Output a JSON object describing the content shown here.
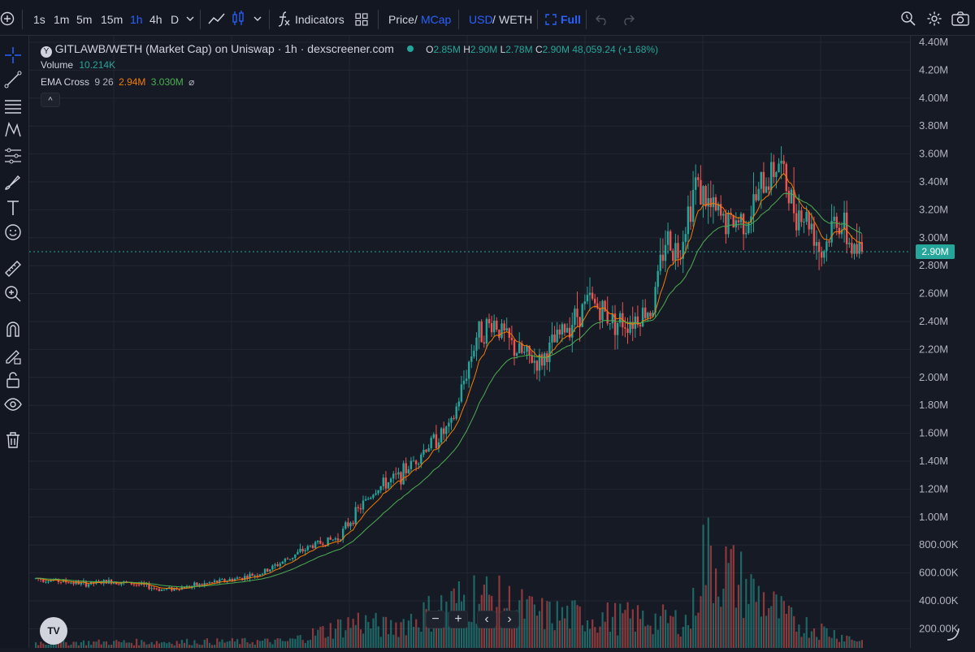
{
  "toolbar": {
    "intervals": [
      "1s",
      "1m",
      "5m",
      "15m",
      "1h",
      "4h",
      "D"
    ],
    "active_interval": "1h",
    "indicators_label": "Indicators",
    "price_label": "Price",
    "slash": "/",
    "mcap_label": "MCap",
    "usd_label": "USD",
    "weth_label": "WETH",
    "full_label": "Full"
  },
  "legend": {
    "pair_title": "GITLAWB/WETH (Market Cap) on Uniswap · 1h · dexscreener.com",
    "o_label": "O",
    "o_value": "2.85M",
    "h_label": "H",
    "h_value": "2.90M",
    "l_label": "L",
    "l_value": "2.78M",
    "c_label": "C",
    "c_value": "2.90M",
    "change": "48,059.24 (+1.68%)",
    "volume_label": "Volume",
    "volume_value": "10.214K",
    "ema_label": "EMA Cross",
    "ema_params": "9 26",
    "ema_fast_value": "2.94M",
    "ema_slow_value": "3.030M",
    "ema_eye": "⌀",
    "collapse_icon": "^"
  },
  "colors": {
    "up": "#26a69a",
    "down": "#ef5350",
    "ema_fast": "#f57c00",
    "ema_slow": "#4caf50",
    "accent": "#2962ff",
    "background": "#161a25"
  },
  "controls": {
    "zoom_out": "−",
    "zoom_in": "+",
    "scroll_left": "‹",
    "scroll_right": "›",
    "logo": "TV"
  },
  "price_axis": {
    "ticks": [
      "4.40M",
      "4.20M",
      "4.00M",
      "3.80M",
      "3.60M",
      "3.40M",
      "3.20M",
      "3.00M",
      "2.80M",
      "2.60M",
      "2.40M",
      "2.20M",
      "2.00M",
      "1.80M",
      "1.60M",
      "1.40M",
      "1.20M",
      "1.00M",
      "800.00K",
      "600.00K",
      "400.00K",
      "200.00K"
    ],
    "last_price": "2.90M"
  },
  "chart_data": {
    "type": "candlestick",
    "y_unit": "USD market cap",
    "ylim": [
      0,
      4400000
    ],
    "last_close": 2900000,
    "grid": true,
    "waypoints": [
      [
        0,
        560000
      ],
      [
        20,
        520000
      ],
      [
        30,
        540000
      ],
      [
        40,
        520000
      ],
      [
        50,
        480000
      ],
      [
        60,
        500000
      ],
      [
        70,
        530000
      ],
      [
        80,
        560000
      ],
      [
        90,
        600000
      ],
      [
        100,
        700000
      ],
      [
        110,
        800000
      ],
      [
        120,
        850000
      ],
      [
        128,
        1050000
      ],
      [
        135,
        1200000
      ],
      [
        145,
        1300000
      ],
      [
        155,
        1500000
      ],
      [
        165,
        1650000
      ],
      [
        175,
        2300000
      ],
      [
        182,
        2400000
      ],
      [
        190,
        2200000
      ],
      [
        200,
        2100000
      ],
      [
        210,
        2350000
      ],
      [
        220,
        2550000
      ],
      [
        230,
        2400000
      ],
      [
        235,
        2400000
      ],
      [
        245,
        2500000
      ],
      [
        250,
        3000000
      ],
      [
        255,
        2900000
      ],
      [
        262,
        3400000
      ],
      [
        268,
        3200000
      ],
      [
        275,
        3100000
      ],
      [
        283,
        3150000
      ],
      [
        288,
        3350000
      ],
      [
        295,
        3550000
      ],
      [
        300,
        3250000
      ],
      [
        308,
        3100000
      ],
      [
        312,
        2880000
      ],
      [
        318,
        3150000
      ],
      [
        325,
        2900000
      ],
      [
        328,
        2900000
      ]
    ],
    "volume_waypoints": [
      [
        0,
        40000
      ],
      [
        100,
        50000
      ],
      [
        128,
        200000
      ],
      [
        140,
        150000
      ],
      [
        175,
        400000
      ],
      [
        200,
        250000
      ],
      [
        260,
        200000
      ],
      [
        265,
        700000
      ],
      [
        300,
        200000
      ],
      [
        328,
        50000
      ]
    ]
  }
}
